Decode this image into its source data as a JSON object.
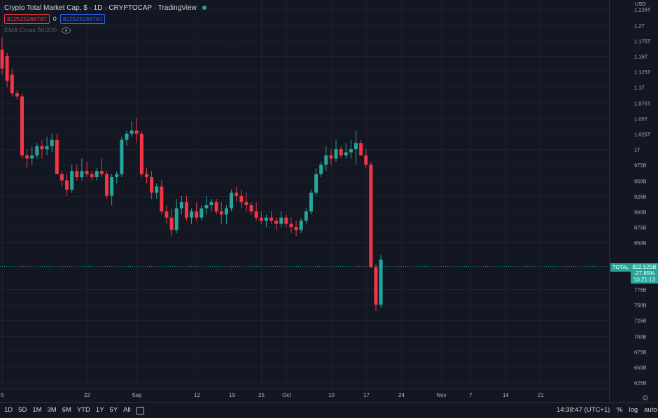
{
  "legend": {
    "title": "Crypto Total Market Cap, $ · 1D · CRYPTOCAP · TradingView",
    "value_red": "822525266797",
    "value_mid": "0",
    "value_blue": "822525266797",
    "indicator": "EMA Cross 50/200"
  },
  "price_axis": {
    "currency": "USD",
    "ticks": [
      {
        "value": 1225,
        "label": "1.225T"
      },
      {
        "value": 1200,
        "label": "1.2T"
      },
      {
        "value": 1175,
        "label": "1.175T"
      },
      {
        "value": 1150,
        "label": "1.15T"
      },
      {
        "value": 1125,
        "label": "1.125T"
      },
      {
        "value": 1100,
        "label": "1.1T"
      },
      {
        "value": 1075,
        "label": "1.075T"
      },
      {
        "value": 1050,
        "label": "1.05T"
      },
      {
        "value": 1025,
        "label": "1.025T"
      },
      {
        "value": 1000,
        "label": "1T"
      },
      {
        "value": 975,
        "label": "975B"
      },
      {
        "value": 950,
        "label": "950B"
      },
      {
        "value": 925,
        "label": "925B"
      },
      {
        "value": 900,
        "label": "900B"
      },
      {
        "value": 875,
        "label": "875B"
      },
      {
        "value": 850,
        "label": "850B"
      },
      {
        "value": 775,
        "label": "775B"
      },
      {
        "value": 750,
        "label": "750B"
      },
      {
        "value": 725,
        "label": "725B"
      },
      {
        "value": 700,
        "label": "700B"
      },
      {
        "value": 675,
        "label": "675B"
      },
      {
        "value": 650,
        "label": "650B"
      },
      {
        "value": 625,
        "label": "625B"
      }
    ]
  },
  "last_price": {
    "symbol": "TOTAL",
    "price": "822.525B",
    "change": "-27.85%",
    "countdown": "10:21:13"
  },
  "time_axis": [
    {
      "index": 0,
      "label": "5"
    },
    {
      "index": 17,
      "label": "22"
    },
    {
      "index": 27,
      "label": "Sep"
    },
    {
      "index": 39,
      "label": "12"
    },
    {
      "index": 46,
      "label": "19"
    },
    {
      "index": 52,
      "label": "25"
    },
    {
      "index": 57,
      "label": "Oct"
    },
    {
      "index": 66,
      "label": "10"
    },
    {
      "index": 73,
      "label": "17"
    },
    {
      "index": 80,
      "label": "24"
    },
    {
      "index": 88,
      "label": "Nov"
    },
    {
      "index": 94,
      "label": "7"
    },
    {
      "index": 101,
      "label": "14"
    },
    {
      "index": 108,
      "label": "21"
    }
  ],
  "bottom_bar": {
    "ranges": [
      "1D",
      "5D",
      "1M",
      "3M",
      "6M",
      "YTD",
      "1Y",
      "5Y",
      "All"
    ],
    "clock": "14:38:47 (UTC+1)",
    "percent": "%",
    "log": "log",
    "auto": "auto"
  },
  "colors": {
    "up": "#26a69a",
    "down": "#f23645",
    "background": "#131722",
    "grid": "#1c2030"
  },
  "icons": [
    "calendar-icon",
    "eye-icon",
    "gear-icon"
  ],
  "chart_data": {
    "type": "candlestick",
    "ylabel": "USD",
    "ylim": [
      615,
      1240
    ],
    "ohlc": [
      [
        1160,
        1180,
        1120,
        1130
      ],
      [
        1150,
        1155,
        1100,
        1110
      ],
      [
        1120,
        1130,
        1085,
        1090
      ],
      [
        1090,
        1095,
        1080,
        1085
      ],
      [
        1085,
        1090,
        985,
        990
      ],
      [
        990,
        1000,
        970,
        985
      ],
      [
        985,
        1005,
        975,
        990
      ],
      [
        990,
        1010,
        985,
        1005
      ],
      [
        1005,
        1015,
        985,
        1000
      ],
      [
        1000,
        1020,
        990,
        1005
      ],
      [
        1005,
        1025,
        995,
        1015
      ],
      [
        1015,
        1025,
        960,
        960
      ],
      [
        960,
        965,
        940,
        950
      ],
      [
        950,
        960,
        925,
        935
      ],
      [
        935,
        975,
        930,
        965
      ],
      [
        965,
        975,
        950,
        955
      ],
      [
        955,
        985,
        950,
        965
      ],
      [
        965,
        980,
        955,
        960
      ],
      [
        960,
        965,
        950,
        955
      ],
      [
        955,
        970,
        950,
        965
      ],
      [
        965,
        985,
        955,
        960
      ],
      [
        960,
        965,
        920,
        925
      ],
      [
        925,
        960,
        910,
        955
      ],
      [
        955,
        965,
        945,
        960
      ],
      [
        960,
        1020,
        955,
        1015
      ],
      [
        1015,
        1030,
        1005,
        1025
      ],
      [
        1025,
        1045,
        1020,
        1030
      ],
      [
        1030,
        1050,
        1010,
        1025
      ],
      [
        1025,
        1030,
        955,
        960
      ],
      [
        960,
        970,
        945,
        955
      ],
      [
        955,
        965,
        920,
        930
      ],
      [
        930,
        945,
        920,
        940
      ],
      [
        940,
        950,
        895,
        900
      ],
      [
        900,
        910,
        880,
        890
      ],
      [
        890,
        905,
        860,
        870
      ],
      [
        870,
        920,
        865,
        905
      ],
      [
        905,
        925,
        895,
        915
      ],
      [
        915,
        925,
        885,
        890
      ],
      [
        890,
        905,
        880,
        900
      ],
      [
        900,
        915,
        885,
        890
      ],
      [
        890,
        910,
        885,
        905
      ],
      [
        905,
        925,
        895,
        910
      ],
      [
        910,
        920,
        900,
        915
      ],
      [
        915,
        920,
        895,
        900
      ],
      [
        900,
        915,
        880,
        895
      ],
      [
        895,
        910,
        880,
        905
      ],
      [
        905,
        935,
        900,
        930
      ],
      [
        930,
        940,
        915,
        925
      ],
      [
        925,
        935,
        905,
        915
      ],
      [
        915,
        930,
        900,
        910
      ],
      [
        910,
        915,
        895,
        900
      ],
      [
        900,
        915,
        885,
        890
      ],
      [
        890,
        900,
        880,
        885
      ],
      [
        885,
        895,
        875,
        890
      ],
      [
        890,
        900,
        880,
        885
      ],
      [
        885,
        890,
        870,
        880
      ],
      [
        880,
        900,
        875,
        890
      ],
      [
        890,
        895,
        875,
        880
      ],
      [
        880,
        890,
        865,
        875
      ],
      [
        875,
        885,
        860,
        870
      ],
      [
        870,
        890,
        865,
        885
      ],
      [
        885,
        905,
        880,
        900
      ],
      [
        900,
        935,
        895,
        930
      ],
      [
        930,
        970,
        925,
        960
      ],
      [
        960,
        980,
        955,
        975
      ],
      [
        975,
        1005,
        965,
        990
      ],
      [
        990,
        1000,
        975,
        985
      ],
      [
        985,
        1015,
        980,
        1000
      ],
      [
        1000,
        1005,
        985,
        990
      ],
      [
        990,
        1010,
        985,
        995
      ],
      [
        995,
        1015,
        985,
        1000
      ],
      [
        1000,
        1030,
        975,
        1010
      ],
      [
        1010,
        1015,
        990,
        990
      ],
      [
        990,
        1000,
        970,
        975
      ],
      [
        975,
        980,
        810,
        810
      ],
      [
        810,
        815,
        740,
        750
      ],
      [
        750,
        830,
        745,
        822.5
      ]
    ]
  }
}
